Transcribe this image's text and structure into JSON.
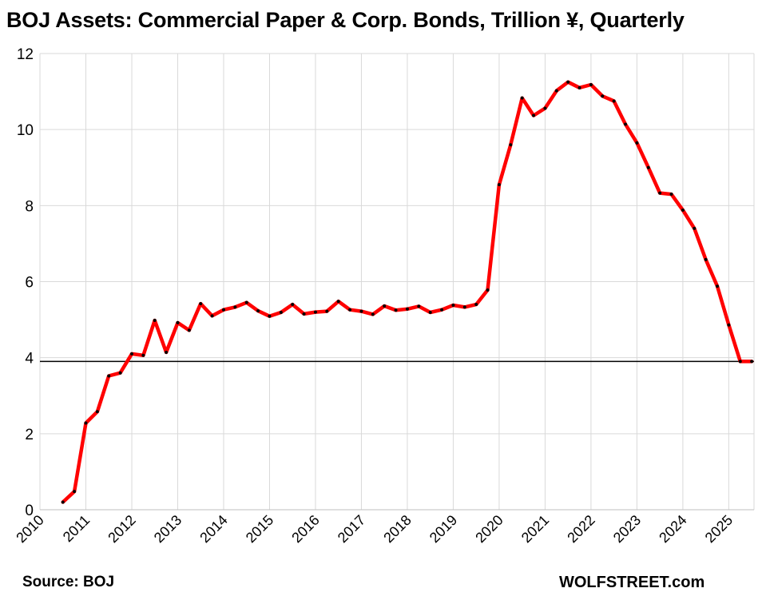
{
  "chart_data": {
    "type": "line",
    "title": "BOJ Assets: Commercial Paper & Corp. Bonds, Trillion ¥, Quarterly",
    "xlabel": "",
    "ylabel": "",
    "ylim": [
      0,
      12
    ],
    "xlim": [
      2010,
      2025.55
    ],
    "y_ticks": [
      "0",
      "2",
      "4",
      "6",
      "8",
      "10",
      "12"
    ],
    "x_ticks": [
      "2010",
      "2011",
      "2012",
      "2013",
      "2014",
      "2015",
      "2016",
      "2017",
      "2018",
      "2019",
      "2020",
      "2021",
      "2022",
      "2023",
      "2024",
      "2025"
    ],
    "grid": true,
    "series": [
      {
        "name": "BOJ Assets: Commercial Paper & Corp. Bonds",
        "color": "#ff0000",
        "marker_color": "#000000",
        "x": [
          2010.5,
          2010.75,
          2011.0,
          2011.25,
          2011.5,
          2011.75,
          2012.0,
          2012.25,
          2012.5,
          2012.75,
          2013.0,
          2013.25,
          2013.5,
          2013.75,
          2014.0,
          2014.25,
          2014.5,
          2014.75,
          2015.0,
          2015.25,
          2015.5,
          2015.75,
          2016.0,
          2016.25,
          2016.5,
          2016.75,
          2017.0,
          2017.25,
          2017.5,
          2017.75,
          2018.0,
          2018.25,
          2018.5,
          2018.75,
          2019.0,
          2019.25,
          2019.5,
          2019.75,
          2020.0,
          2020.25,
          2020.5,
          2020.75,
          2021.0,
          2021.25,
          2021.5,
          2021.75,
          2022.0,
          2022.25,
          2022.5,
          2022.75,
          2023.0,
          2023.25,
          2023.5,
          2023.75,
          2024.0,
          2024.25,
          2024.5,
          2024.75,
          2025.0,
          2025.25,
          2025.5
        ],
        "values": [
          0.2,
          0.48,
          2.28,
          2.58,
          3.52,
          3.6,
          4.1,
          4.06,
          4.98,
          4.14,
          4.92,
          4.72,
          5.42,
          5.1,
          5.26,
          5.33,
          5.45,
          5.23,
          5.09,
          5.19,
          5.4,
          5.15,
          5.2,
          5.22,
          5.48,
          5.26,
          5.22,
          5.14,
          5.36,
          5.25,
          5.28,
          5.35,
          5.19,
          5.26,
          5.38,
          5.33,
          5.4,
          5.78,
          8.55,
          9.6,
          10.83,
          10.37,
          10.56,
          11.02,
          11.25,
          11.1,
          11.18,
          10.88,
          10.75,
          10.14,
          9.65,
          9.0,
          8.33,
          8.3,
          7.88,
          7.4,
          6.58,
          5.88,
          4.86,
          3.9,
          3.9
        ],
        "reference_line": 3.9
      }
    ],
    "annotations": {
      "source": "Source: BOJ",
      "brand": "WOLFSTREET.com"
    }
  }
}
